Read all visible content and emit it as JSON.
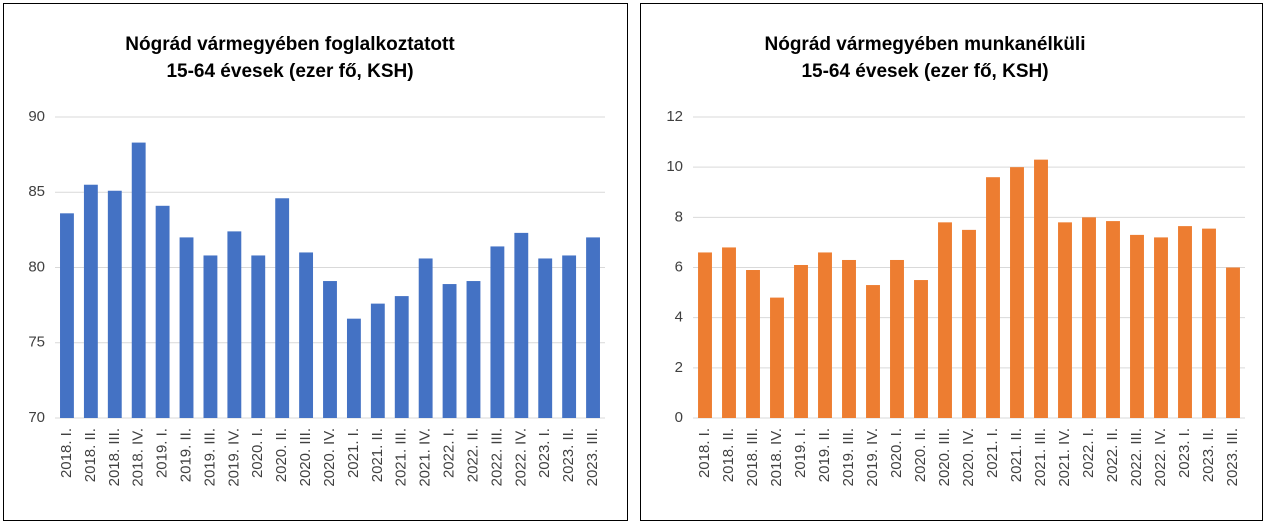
{
  "chart_data": [
    {
      "type": "bar",
      "title": [
        "Nógrád vármegyében foglalkoztatott",
        "15-64 évesek (ezer fő, KSH)"
      ],
      "categories": [
        "2018. I.",
        "2018. II.",
        "2018. III.",
        "2018. IV.",
        "2019. I.",
        "2019. II.",
        "2019. III.",
        "2019. IV.",
        "2020. I.",
        "2020. II.",
        "2020. III.",
        "2020. IV.",
        "2021. I.",
        "2021. II.",
        "2021. III.",
        "2021. IV.",
        "2022. I.",
        "2022. II.",
        "2022. III.",
        "2022. IV.",
        "2023. I.",
        "2023. II.",
        "2023. III."
      ],
      "values": [
        83.6,
        85.5,
        85.1,
        88.3,
        84.1,
        82.0,
        80.8,
        82.4,
        80.8,
        84.6,
        81.0,
        79.1,
        76.6,
        77.6,
        78.1,
        80.6,
        78.9,
        79.1,
        81.4,
        82.3,
        80.6,
        80.8,
        82.0
      ],
      "color": "#4472c4",
      "ylim": [
        70,
        90
      ],
      "yticks": [
        70,
        75,
        80,
        85,
        90
      ],
      "grid": true
    },
    {
      "type": "bar",
      "title": [
        "Nógrád vármegyében munkanélküli",
        "15-64 évesek (ezer fő, KSH)"
      ],
      "categories": [
        "2018. I.",
        "2018. II.",
        "2018. III.",
        "2018. IV.",
        "2019. I.",
        "2019. II.",
        "2019. III.",
        "2019. IV.",
        "2020. I.",
        "2020. II.",
        "2020. III.",
        "2020. IV.",
        "2021. I.",
        "2021. II.",
        "2021. III.",
        "2021. IV.",
        "2022. I.",
        "2022. II.",
        "2022. III.",
        "2022. IV.",
        "2023. I.",
        "2023. II.",
        "2023. III."
      ],
      "values": [
        6.6,
        6.8,
        5.9,
        4.8,
        6.1,
        6.6,
        6.3,
        5.3,
        6.3,
        5.5,
        7.8,
        7.5,
        9.6,
        10.0,
        10.3,
        7.8,
        8.0,
        7.85,
        7.3,
        7.2,
        7.65,
        7.55,
        6.0
      ],
      "color": "#ed7d31",
      "ylim": [
        0,
        12
      ],
      "yticks": [
        0,
        2,
        4,
        6,
        8,
        10,
        12
      ],
      "grid": true
    }
  ]
}
